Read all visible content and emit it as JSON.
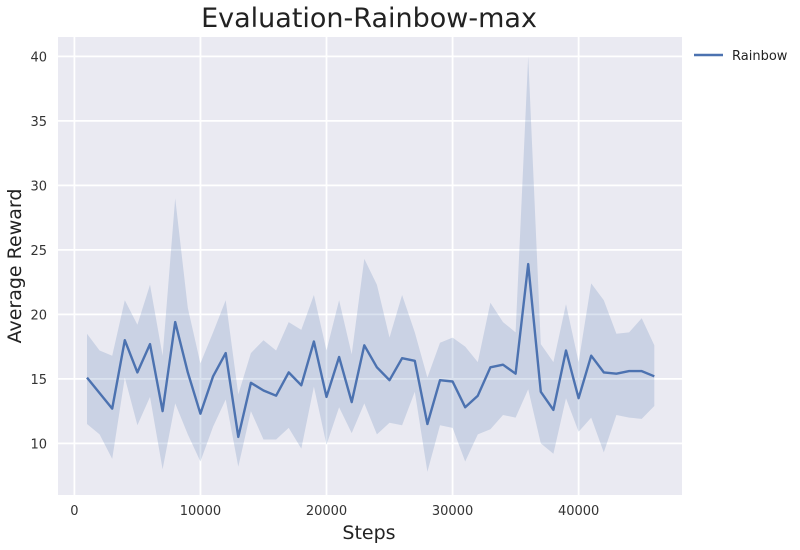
{
  "chart_data": {
    "type": "line",
    "title": "Evaluation-Rainbow-max",
    "xlabel": "Steps",
    "ylabel": "Average Reward",
    "xlim": [
      -1300,
      48200
    ],
    "ylim": [
      6,
      41.5
    ],
    "xticks": [
      0,
      10000,
      20000,
      30000,
      40000
    ],
    "yticks": [
      10,
      15,
      20,
      25,
      30,
      35,
      40
    ],
    "grid": true,
    "legend": "outside-top-right",
    "colors": {
      "line": "#4c72b0",
      "band": "#4c72b0",
      "background": "#eaeaf2",
      "grid": "#ffffff"
    },
    "series": [
      {
        "name": "Rainbow",
        "x": [
          1000,
          2000,
          3000,
          4000,
          5000,
          6000,
          7000,
          8000,
          9000,
          10000,
          11000,
          12000,
          13000,
          14000,
          15000,
          16000,
          17000,
          18000,
          19000,
          20000,
          21000,
          22000,
          23000,
          24000,
          25000,
          26000,
          27000,
          28000,
          29000,
          30000,
          31000,
          32000,
          33000,
          34000,
          35000,
          36000,
          37000,
          38000,
          39000,
          40000,
          41000,
          42000,
          43000,
          44000,
          45000,
          46000
        ],
        "y": [
          15.1,
          13.9,
          12.7,
          18.0,
          15.5,
          17.7,
          12.5,
          19.4,
          15.5,
          12.3,
          15.2,
          17.0,
          10.5,
          14.7,
          14.1,
          13.7,
          15.5,
          14.5,
          17.9,
          13.6,
          16.7,
          13.2,
          17.6,
          15.9,
          14.9,
          16.6,
          16.4,
          11.5,
          14.9,
          14.8,
          12.8,
          13.7,
          15.9,
          16.1,
          15.4,
          23.9,
          14.0,
          12.6,
          17.2,
          13.5,
          16.8,
          15.5,
          15.4,
          15.6,
          15.6,
          15.2
        ],
        "upper": [
          18.5,
          17.2,
          16.8,
          21.1,
          19.2,
          22.3,
          16.8,
          29.0,
          20.5,
          16.2,
          18.6,
          21.1,
          13.8,
          17.0,
          18.0,
          17.2,
          19.4,
          18.8,
          21.5,
          17.2,
          21.1,
          16.9,
          24.3,
          22.3,
          18.2,
          21.5,
          18.6,
          15.1,
          17.8,
          18.2,
          17.5,
          16.3,
          20.9,
          19.4,
          18.6,
          40.0,
          17.7,
          16.3,
          20.8,
          16.3,
          22.4,
          21.1,
          18.5,
          18.6,
          19.7,
          17.6
        ],
        "lower": [
          11.5,
          10.7,
          8.8,
          15.1,
          11.4,
          13.6,
          8.0,
          13.1,
          10.7,
          8.6,
          11.3,
          13.4,
          8.2,
          12.5,
          10.3,
          10.3,
          11.2,
          9.6,
          14.4,
          9.9,
          12.8,
          10.8,
          13.1,
          10.7,
          11.6,
          11.4,
          14.0,
          7.8,
          11.4,
          11.2,
          8.6,
          10.7,
          11.1,
          12.2,
          12.0,
          14.2,
          10.0,
          9.2,
          13.5,
          10.9,
          12.0,
          9.3,
          12.2,
          12.0,
          11.9,
          12.9
        ]
      }
    ]
  }
}
